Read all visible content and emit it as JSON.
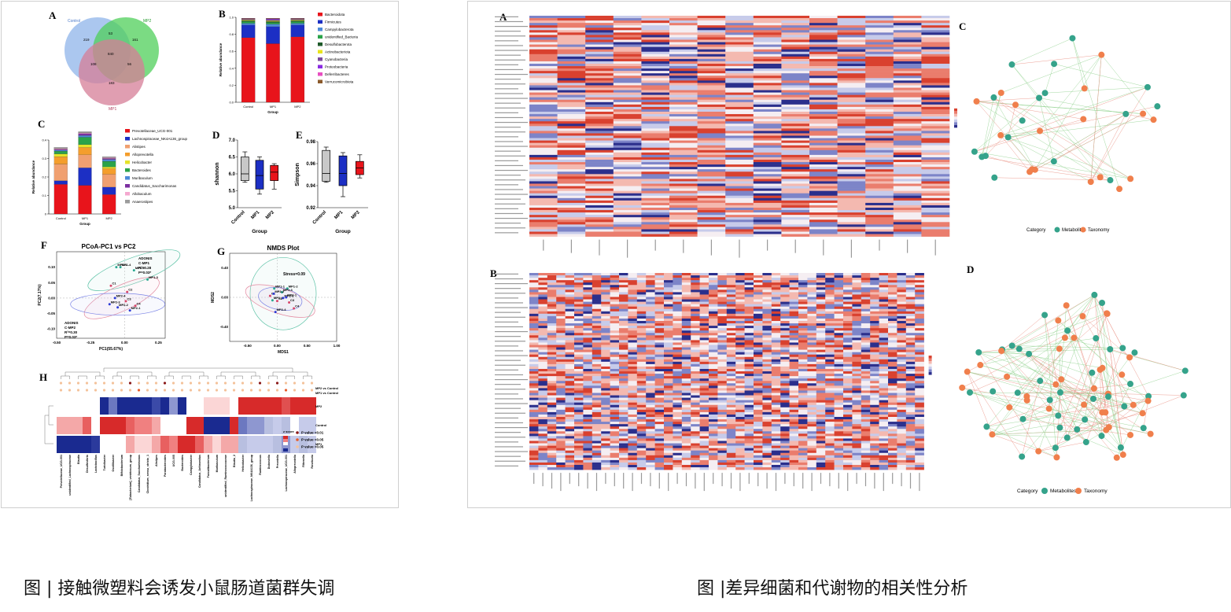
{
  "left_figure": {
    "caption": "图 | 接触微塑料会诱发小鼠肠道菌群失调",
    "panels": {
      "A": {
        "label": "A",
        "venn": {
          "sets": [
            "Control",
            "MP2",
            "MP1"
          ],
          "values": {
            "control_only": "219",
            "mp2_only": "161",
            "mp1_only": "183",
            "control_mp2": "53",
            "control_mp1": "108",
            "mp2_mp1": "56",
            "all": "840"
          },
          "colors": [
            "#8fb4ea",
            "#4fcf5a",
            "#d57e97"
          ]
        }
      },
      "B": {
        "label": "B"
      },
      "C": {
        "label": "C"
      },
      "D": {
        "label": "D"
      },
      "E": {
        "label": "E"
      },
      "F": {
        "label": "F",
        "title": "PCoA-PC1 vs PC2",
        "stats_top": [
          "ADONIS",
          "C-MP1",
          "R²=0.28",
          "P=0.03*"
        ],
        "stats_bottom": [
          "ADONIS",
          "C-MP2",
          "R²=0.30",
          "P=0.03*"
        ],
        "xlabel": "PC1(55.67%)",
        "ylabel": "PC2(7.17%)"
      },
      "G": {
        "label": "G",
        "title": "NMDS Plot",
        "stress": "Stress=0.09",
        "xlabel": "MDS1",
        "ylabel": "MDS2"
      },
      "H": {
        "label": "H",
        "legend_title": "z score",
        "row_labels": [
          "MP2 vs Control",
          "MP1 vs Control",
          "MP2",
          "Control",
          "MP1"
        ],
        "p_legend": [
          "P value <0.01",
          "P value <0.05",
          "P value >0.05"
        ]
      }
    }
  },
  "right_figure": {
    "caption": "图 |差异细菌和代谢物的相关性分析",
    "panels": {
      "A": {
        "label": "A"
      },
      "B": {
        "label": "B"
      },
      "C": {
        "label": "C",
        "legend_title": "Category",
        "legend_items": [
          "Metabolites",
          "Taxonomy"
        ]
      },
      "D": {
        "label": "D",
        "legend_title": "Category",
        "legend_items": [
          "Metabolites",
          "Taxonomy"
        ]
      }
    }
  },
  "chart_data": [
    {
      "type": "bar",
      "id": "B",
      "stacked": true,
      "categories": [
        "Control",
        "MP1",
        "MP2"
      ],
      "xlabel": "Group",
      "ylabel": "Relative abundance",
      "ylim": [
        0,
        1.0
      ],
      "yticks": [
        "0.0",
        "0.2",
        "0.4",
        "0.6",
        "0.8",
        "1.0"
      ],
      "series": [
        {
          "name": "Bacteroidota",
          "color": "#e8141b",
          "values": [
            0.76,
            0.69,
            0.77
          ]
        },
        {
          "name": "Firmicutes",
          "color": "#1c2fc4",
          "values": [
            0.15,
            0.2,
            0.14
          ]
        },
        {
          "name": "Campylobacterota",
          "color": "#4d8ad8",
          "values": [
            0.02,
            0.03,
            0.02
          ]
        },
        {
          "name": "unidentified_Bacteria",
          "color": "#2aa34a",
          "values": [
            0.02,
            0.02,
            0.02
          ]
        },
        {
          "name": "Desulfobacterota",
          "color": "#1f5a2a",
          "values": [
            0.01,
            0.01,
            0.01
          ]
        },
        {
          "name": "Actinobacteriota",
          "color": "#e9e41c",
          "values": [
            0.01,
            0.01,
            0.01
          ]
        },
        {
          "name": "Cyanobacteria",
          "color": "#7b4a9c",
          "values": [
            0.005,
            0.01,
            0.005
          ]
        },
        {
          "name": "Proteobacteria",
          "color": "#8a2be2",
          "values": [
            0.005,
            0.01,
            0.005
          ]
        },
        {
          "name": "Deferribacteres",
          "color": "#e84ec1",
          "values": [
            0.005,
            0.005,
            0.005
          ]
        },
        {
          "name": "Verrucomicrobiota",
          "color": "#8b5a2b",
          "values": [
            0.005,
            0.005,
            0.005
          ]
        }
      ]
    },
    {
      "type": "bar",
      "id": "C",
      "stacked": true,
      "categories": [
        "Control",
        "MP1",
        "MP2"
      ],
      "xlabel": "Group",
      "ylabel": "Relative abundance",
      "ylim": [
        0,
        0.4
      ],
      "yticks": [
        "0",
        "0.1",
        "0.2",
        "0.3",
        "0.4"
      ],
      "series": [
        {
          "name": "Prevotellaceae_UCG-001",
          "color": "#e8141b",
          "values": [
            0.16,
            0.155,
            0.105
          ]
        },
        {
          "name": "Lachnospiraceae_NK4A136_group",
          "color": "#1c2fc4",
          "values": [
            0.02,
            0.095,
            0.04
          ]
        },
        {
          "name": "Alistipes",
          "color": "#f0a070",
          "values": [
            0.09,
            0.07,
            0.07
          ]
        },
        {
          "name": "Alloprevotella",
          "color": "#f49e2c",
          "values": [
            0.04,
            0.04,
            0.03
          ]
        },
        {
          "name": "Helicobacter",
          "color": "#e5e32a",
          "values": [
            0.015,
            0.015,
            0.01
          ]
        },
        {
          "name": "Bacteroides",
          "color": "#2aa34a",
          "values": [
            0.015,
            0.04,
            0.03
          ]
        },
        {
          "name": "Muribaculum",
          "color": "#4d8ad8",
          "values": [
            0.005,
            0.01,
            0.01
          ]
        },
        {
          "name": "Candidatus_Saccharimonas",
          "color": "#7b2fa0",
          "values": [
            0.005,
            0.01,
            0.005
          ]
        },
        {
          "name": "Allobaculum",
          "color": "#f4a8cf",
          "values": [
            0.005,
            0.005,
            0.005
          ]
        },
        {
          "name": "Anaerostipes",
          "color": "#9c9c9c",
          "values": [
            0.005,
            0.005,
            0.005
          ]
        }
      ]
    },
    {
      "type": "box",
      "id": "D",
      "categories": [
        "Control",
        "MP1",
        "MP2"
      ],
      "xlabel": "Group",
      "ylabel": "shannon",
      "ylim": [
        5.0,
        7.0
      ],
      "yticks": [
        "5.0",
        "5.5",
        "6.0",
        "6.5",
        "7.0"
      ],
      "colors": [
        "#c8c8c8",
        "#1c2fc4",
        "#e8141b"
      ],
      "boxes": [
        {
          "min": 5.75,
          "q1": 5.8,
          "median": 6.0,
          "q3": 6.5,
          "max": 6.65
        },
        {
          "min": 5.4,
          "q1": 5.55,
          "median": 5.95,
          "q3": 6.4,
          "max": 6.5
        },
        {
          "min": 5.55,
          "q1": 5.8,
          "median": 6.05,
          "q3": 6.25,
          "max": 6.3
        }
      ]
    },
    {
      "type": "box",
      "id": "E",
      "categories": [
        "Control",
        "MP1",
        "MP2"
      ],
      "xlabel": "Group",
      "ylabel": "Simpson",
      "ylim": [
        0.92,
        0.98
      ],
      "yticks": [
        "0.92",
        "0.94",
        "0.96",
        "0.98"
      ],
      "colors": [
        "#c8c8c8",
        "#1c2fc4",
        "#e8141b"
      ],
      "boxes": [
        {
          "min": 0.943,
          "q1": 0.944,
          "median": 0.951,
          "q3": 0.972,
          "max": 0.975
        },
        {
          "min": 0.93,
          "q1": 0.94,
          "median": 0.951,
          "q3": 0.967,
          "max": 0.97
        },
        {
          "min": 0.947,
          "q1": 0.95,
          "median": 0.956,
          "q3": 0.962,
          "max": 0.968
        }
      ]
    },
    {
      "type": "scatter",
      "id": "F",
      "title": "PCoA-PC1 vs PC2",
      "xlabel": "PC1(55.67%)",
      "ylabel": "PC2(7.17%)",
      "xlim": [
        -0.5,
        0.3
      ],
      "ylim": [
        -0.13,
        0.15
      ],
      "xticks": [
        "-0.50",
        "-0.25",
        "0.00",
        "0.25"
      ],
      "yticks": [
        "-0.10",
        "-0.05",
        "0.00",
        "0.05",
        "0.10"
      ],
      "points": [
        {
          "label": "MP1-1",
          "x": -0.06,
          "y": 0.1,
          "color": "#2aa890"
        },
        {
          "label": "MP1-4",
          "x": -0.03,
          "y": 0.1,
          "color": "#2aa890"
        },
        {
          "label": "MP1-2",
          "x": 0.07,
          "y": 0.09,
          "color": "#2aa890"
        },
        {
          "label": "MP1-3",
          "x": 0.17,
          "y": 0.06,
          "color": "#2aa890"
        },
        {
          "label": "C1",
          "x": -0.1,
          "y": 0.04,
          "color": "#d8476a"
        },
        {
          "label": "C2",
          "x": 0.02,
          "y": 0.02,
          "color": "#d8476a"
        },
        {
          "label": "C3",
          "x": 0.01,
          "y": -0.01,
          "color": "#d8476a"
        },
        {
          "label": "C4",
          "x": 0.08,
          "y": -0.025,
          "color": "#d8476a"
        },
        {
          "label": "MP2-4",
          "x": -0.07,
          "y": 0.0,
          "color": "#2d3bd6"
        },
        {
          "label": "MP2-3",
          "x": -0.11,
          "y": -0.02,
          "color": "#2d3bd6"
        },
        {
          "label": "MP2-2",
          "x": -0.05,
          "y": -0.03,
          "color": "#2d3bd6"
        },
        {
          "label": "MP2-1",
          "x": 0.04,
          "y": -0.04,
          "color": "#2d3bd6"
        }
      ]
    },
    {
      "type": "scatter",
      "id": "G",
      "title": "NMDS Plot",
      "xlabel": "MDS1",
      "ylabel": "MDS2",
      "xlim": [
        -0.8,
        1.0
      ],
      "ylim": [
        -0.6,
        0.6
      ],
      "xticks": [
        "-0.50",
        "0.00",
        "0.50",
        "1.00"
      ],
      "yticks": [
        "-0.40",
        "0.00",
        "0.40"
      ],
      "points": [
        {
          "label": "MP1-1",
          "x": -0.05,
          "y": 0.12,
          "color": "#2aa890"
        },
        {
          "label": "MP1-2",
          "x": 0.17,
          "y": 0.12,
          "color": "#2aa890"
        },
        {
          "label": "MP1-3",
          "x": 0.08,
          "y": 0.07,
          "color": "#2aa890"
        },
        {
          "label": "MP1-4",
          "x": -0.08,
          "y": -0.04,
          "color": "#2aa890"
        },
        {
          "label": "C1",
          "x": -0.12,
          "y": 0.02,
          "color": "#d8476a"
        },
        {
          "label": "C2",
          "x": 0.0,
          "y": -0.05,
          "color": "#d8476a"
        },
        {
          "label": "C3",
          "x": 0.2,
          "y": -0.07,
          "color": "#d8476a"
        },
        {
          "label": "C4",
          "x": 0.28,
          "y": -0.15,
          "color": "#d8476a"
        },
        {
          "label": "MP2-2",
          "x": -0.06,
          "y": 0.05,
          "color": "#2d3bd6"
        },
        {
          "label": "MP2-3",
          "x": 0.1,
          "y": -0.01,
          "color": "#2d3bd6"
        },
        {
          "label": "MP2-1",
          "x": 0.15,
          "y": 0.0,
          "color": "#2d3bd6"
        },
        {
          "label": "MP2-4",
          "x": -0.03,
          "y": -0.2,
          "color": "#2d3bd6"
        }
      ]
    },
    {
      "type": "heatmap",
      "id": "H",
      "rows": [
        "MP2",
        "Control",
        "MP1"
      ],
      "columns": [
        "Prevotellaceae_UCG-001",
        "unidentified_Lachnospiraceae",
        "Blautia",
        "Desulfovibrio",
        "Lactobacillus",
        "Turicibacter",
        "Oscillibacter",
        "Bifidobacterium",
        "[Eubacterium]_ventriosum_group",
        "Candidatus_Saccharimonas",
        "Clostridium_sensu_stricto_1",
        "Alistipes",
        "Parabacteroides",
        "UCG-005",
        "Bacteroides",
        "Campylobacter",
        "Candidatus_Arthromitus",
        "Faecalibacterium",
        "Muribaculum",
        "unidentified_Ruminococcaceae",
        "Blautia_2",
        "Helicobacter",
        "Lachnospiraceae_NK4A136_group",
        "Ruminococcus",
        "Dubosiella",
        "Prevotella",
        "Lachnospiraceae_UCG-001",
        "Alloprevotella",
        "Rikenella",
        "Roseburia"
      ]
    }
  ]
}
